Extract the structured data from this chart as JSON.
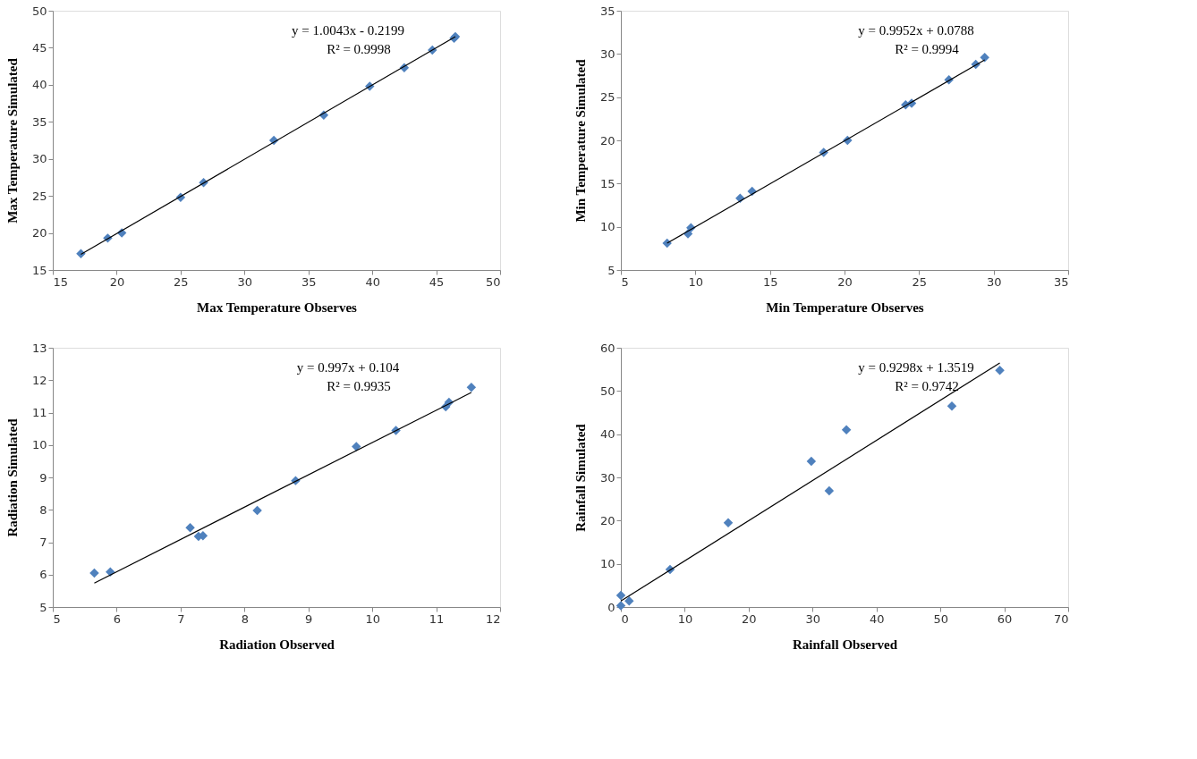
{
  "chart_data": [
    {
      "type": "scatter",
      "xlabel": "Max Temperature Observes",
      "ylabel": "Max Temperature Simulated",
      "xlim": [
        15,
        50
      ],
      "ylim": [
        15,
        50
      ],
      "xticks": [
        15,
        20,
        25,
        30,
        35,
        40,
        45,
        50
      ],
      "yticks": [
        15,
        20,
        25,
        30,
        35,
        40,
        45,
        50
      ],
      "series": [
        {
          "marker": "diamond",
          "color": "#4f81bd",
          "x": [
            17.2,
            19.3,
            20.4,
            25.0,
            26.8,
            32.3,
            36.2,
            39.8,
            42.5,
            44.7,
            46.4,
            46.5
          ],
          "values": [
            17.2,
            19.3,
            20.0,
            24.8,
            26.8,
            32.5,
            35.9,
            39.8,
            42.3,
            44.7,
            46.3,
            46.5
          ]
        },
        {
          "type": "line",
          "color": "#000000",
          "x": [
            17.2,
            46.5
          ],
          "values": [
            17.1,
            46.5
          ]
        }
      ],
      "annotations": [
        "y = 1.0043x - 0.2199",
        "R² = 0.9998"
      ]
    },
    {
      "type": "scatter",
      "xlabel": "Min Temperature Observes",
      "ylabel": "Min Temperature Simulated",
      "xlim": [
        5,
        35
      ],
      "ylim": [
        5,
        35
      ],
      "xticks": [
        5,
        10,
        15,
        20,
        25,
        30,
        35
      ],
      "yticks": [
        5,
        10,
        15,
        20,
        25,
        30,
        35
      ],
      "series": [
        {
          "marker": "diamond",
          "color": "#4f81bd",
          "x": [
            8.1,
            9.5,
            9.7,
            13.0,
            13.8,
            18.6,
            20.2,
            24.1,
            24.5,
            27.0,
            28.8,
            29.4
          ],
          "values": [
            8.1,
            9.2,
            9.9,
            13.3,
            14.1,
            18.6,
            20.0,
            24.1,
            24.3,
            27.0,
            28.8,
            29.6
          ]
        },
        {
          "type": "line",
          "color": "#000000",
          "x": [
            8.1,
            29.4
          ],
          "values": [
            8.1,
            29.3
          ]
        }
      ],
      "annotations": [
        "y = 0.9952x + 0.0788",
        "R² = 0.9994"
      ]
    },
    {
      "type": "scatter",
      "xlabel": "Radiation Observed",
      "ylabel": "Radiation Simulated",
      "xlim": [
        5,
        12
      ],
      "ylim": [
        5,
        13
      ],
      "xticks": [
        5,
        6,
        7,
        8,
        9,
        10,
        11,
        12
      ],
      "yticks": [
        5,
        6,
        7,
        8,
        9,
        10,
        11,
        12,
        13
      ],
      "series": [
        {
          "marker": "diamond",
          "color": "#4f81bd",
          "x": [
            5.65,
            5.9,
            7.15,
            7.28,
            7.35,
            8.2,
            8.8,
            9.75,
            10.37,
            11.15,
            11.2,
            11.55
          ],
          "values": [
            6.05,
            6.08,
            7.45,
            7.18,
            7.2,
            7.98,
            8.9,
            9.95,
            10.45,
            11.18,
            11.32,
            11.78
          ]
        },
        {
          "type": "line",
          "color": "#000000",
          "x": [
            5.65,
            11.55
          ],
          "values": [
            5.74,
            11.62
          ]
        }
      ],
      "annotations": [
        "y = 0.997x + 0.104",
        "R² = 0.9935"
      ]
    },
    {
      "type": "scatter",
      "xlabel": "Rainfall Observed",
      "ylabel": "Rainfall Simulated",
      "xlim": [
        0,
        70
      ],
      "ylim": [
        0,
        60
      ],
      "xticks": [
        0,
        10,
        20,
        30,
        40,
        50,
        60,
        70
      ],
      "yticks": [
        0,
        10,
        20,
        30,
        40,
        50,
        60
      ],
      "series": [
        {
          "marker": "diamond",
          "color": "#4f81bd",
          "x": [
            0,
            0,
            1.3,
            7.7,
            16.8,
            29.8,
            32.6,
            35.3,
            51.8,
            59.3
          ],
          "values": [
            0.3,
            2.7,
            1.4,
            8.7,
            19.5,
            33.7,
            26.9,
            41.0,
            46.5,
            54.8
          ]
        },
        {
          "type": "line",
          "color": "#000000",
          "x": [
            0,
            59.3
          ],
          "values": [
            1.4,
            56.5
          ]
        }
      ],
      "annotations": [
        "y = 0.9298x + 1.3519",
        "R² = 0.9742"
      ]
    }
  ]
}
